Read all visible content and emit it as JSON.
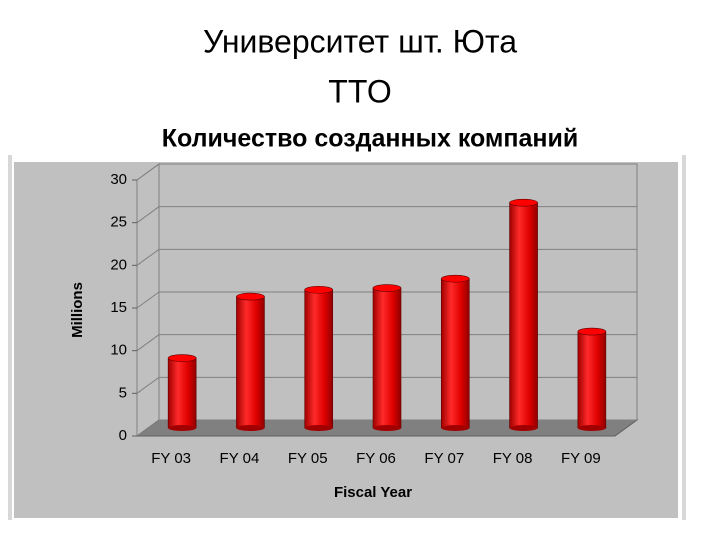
{
  "chart_data": {
    "type": "bar",
    "title_lines": [
      "Университет шт. Юта",
      "TTO"
    ],
    "subtitle": "Количество созданных компаний",
    "y_label": "Millions",
    "x_label": "Fiscal Year",
    "categories": [
      "FY 03",
      "FY 04",
      "FY 05",
      "FY 06",
      "FY 07",
      "FY 08",
      "FY 09"
    ],
    "values": [
      8.2,
      15.4,
      16.2,
      16.4,
      17.5,
      26.4,
      11.3
    ],
    "color": "#ff0000",
    "ylim": [
      0,
      30
    ],
    "yticks": [
      0,
      5,
      10,
      15,
      20,
      25,
      30
    ],
    "grid": true
  }
}
